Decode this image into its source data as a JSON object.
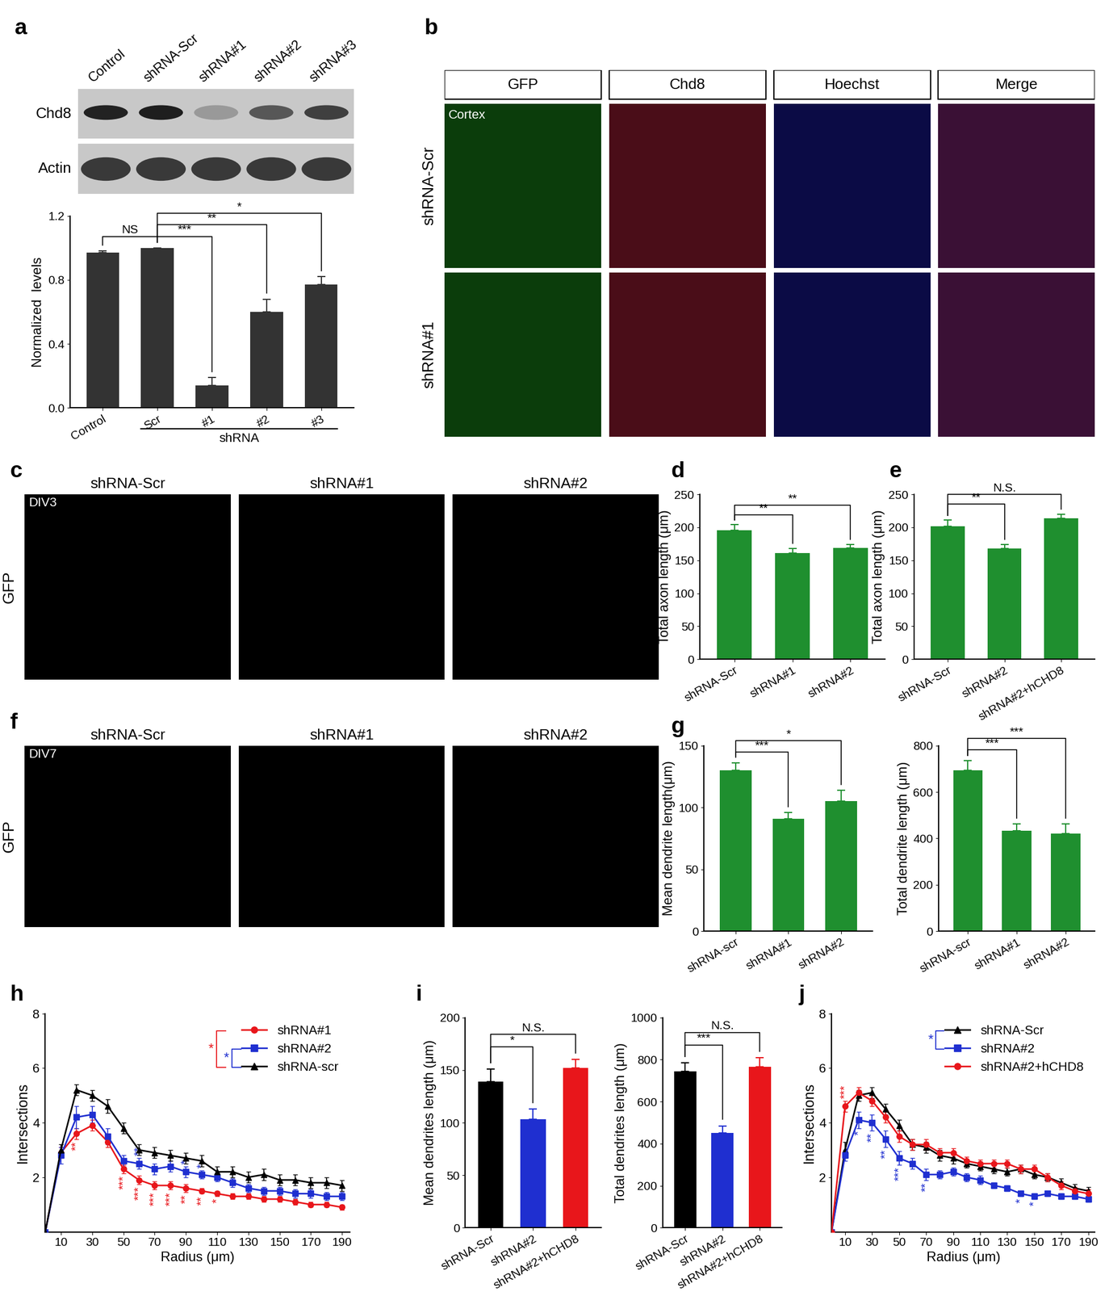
{
  "chart_data": [
    {
      "panel": "a",
      "type": "blot",
      "lanes": [
        "Control",
        "shRNA-Scr",
        "shRNA#1",
        "shRNA#2",
        "shRNA#3"
      ],
      "rows": [
        "Chd8",
        "Actin"
      ]
    },
    {
      "type": "bar",
      "ylabel": "Normalized  levels",
      "categories": [
        "Control",
        "Scr",
        "#1",
        "#2",
        "#3"
      ],
      "values": [
        0.97,
        1.0,
        0.14,
        0.6,
        0.77
      ],
      "errors": [
        0.01,
        0.0,
        0.05,
        0.08,
        0.05
      ],
      "color": "#333333",
      "ylim": [
        0,
        1.2
      ],
      "yticks": [
        {
          "value": 0,
          "label": "0.0"
        },
        0.4,
        0.8,
        1.2
      ],
      "group": {
        "label": "shRNA",
        "categories": [
          "Scr",
          "#1",
          "#2",
          "#3"
        ]
      },
      "significance": [
        {
          "pair": [
            "Scr",
            "#1"
          ],
          "label": "***"
        },
        {
          "pair": [
            "Scr",
            "#2"
          ],
          "label": "**"
        },
        {
          "pair": [
            "Scr",
            "#3"
          ],
          "label": "*"
        },
        {
          "pair": [
            "Control",
            "Scr"
          ],
          "label": "NS"
        }
      ]
    },
    {
      "panel": "b",
      "type": "image",
      "columns": [
        "GFP",
        "Chd8",
        "Hoechst",
        "Merge"
      ],
      "rows": [
        "shRNA-Scr",
        "shRNA#1"
      ],
      "annotation": "Cortex"
    },
    {
      "panel": "c",
      "type": "image",
      "columns": [
        "shRNA-Scr",
        "shRNA#1",
        "shRNA#2"
      ],
      "rows": [
        "GFP"
      ],
      "annotation": "DIV3"
    },
    {
      "panel": "d",
      "type": "bar",
      "ylabel": "Total axon length (μm)",
      "categories": [
        "shRNA-Scr",
        "shRNA#1",
        "shRNA#2"
      ],
      "values": [
        196,
        161,
        169
      ],
      "errors": [
        8,
        7,
        5
      ],
      "color": "#1f8f2f",
      "ylim": [
        0,
        250
      ],
      "yticks": [
        0,
        50,
        100,
        150,
        200,
        250
      ],
      "significance": [
        {
          "pair": [
            "shRNA-Scr",
            "shRNA#1"
          ],
          "label": "**"
        },
        {
          "pair": [
            "shRNA-Scr",
            "shRNA#2"
          ],
          "label": "**"
        }
      ]
    },
    {
      "panel": "e",
      "type": "bar",
      "ylabel": "Total axon length (μm)",
      "categories": [
        "shRNA-Scr",
        "shRNA#2",
        "shRNA#2+hCHD8"
      ],
      "values": [
        202,
        168,
        214
      ],
      "errors": [
        9,
        6,
        6
      ],
      "color": "#1f8f2f",
      "ylim": [
        0,
        250
      ],
      "yticks": [
        0,
        50,
        100,
        150,
        200,
        250
      ],
      "significance": [
        {
          "pair": [
            "shRNA-Scr",
            "shRNA#2"
          ],
          "label": "**"
        },
        {
          "pair": [
            "shRNA-Scr",
            "shRNA#2+hCHD8"
          ],
          "label": "N.S."
        }
      ]
    },
    {
      "panel": "f",
      "type": "image",
      "columns": [
        "shRNA-Scr",
        "shRNA#1",
        "shRNA#2"
      ],
      "rows": [
        "GFP"
      ],
      "annotation": "DIV7"
    },
    {
      "panel": "g",
      "type": "bar",
      "ylabel": "Mean dendrite length(μm)",
      "categories": [
        "shRNA-scr",
        "shRNA#1",
        "shRNA#2"
      ],
      "values": [
        130,
        91,
        105
      ],
      "errors": [
        6,
        5,
        9
      ],
      "color": "#1f8f2f",
      "ylim": [
        0,
        150
      ],
      "yticks": [
        0,
        50,
        100,
        150
      ],
      "significance": [
        {
          "pair": [
            "shRNA-scr",
            "shRNA#1"
          ],
          "label": "***"
        },
        {
          "pair": [
            "shRNA-scr",
            "shRNA#2"
          ],
          "label": "*"
        }
      ]
    },
    {
      "type": "bar",
      "ylabel": "Total dendrite length (μm)",
      "categories": [
        "shRNA-scr",
        "shRNA#1",
        "shRNA#2"
      ],
      "values": [
        695,
        433,
        422
      ],
      "errors": [
        40,
        30,
        40
      ],
      "color": "#1f8f2f",
      "ylim": [
        0,
        800
      ],
      "yticks": [
        0,
        200,
        400,
        600,
        800
      ],
      "significance": [
        {
          "pair": [
            "shRNA-scr",
            "shRNA#1"
          ],
          "label": "***"
        },
        {
          "pair": [
            "shRNA-scr",
            "shRNA#2"
          ],
          "label": "***"
        }
      ]
    },
    {
      "panel": "h",
      "type": "line",
      "xlabel": "Radius (μm)",
      "ylabel": "Intersections",
      "x": [
        0,
        10,
        20,
        30,
        40,
        50,
        60,
        70,
        80,
        90,
        100,
        110,
        120,
        130,
        140,
        150,
        160,
        170,
        180,
        190
      ],
      "xlim": [
        0,
        195
      ],
      "xticks": [
        10,
        30,
        50,
        70,
        90,
        110,
        130,
        150,
        170,
        190
      ],
      "ylim": [
        0,
        8
      ],
      "yticks": [
        2,
        4,
        6,
        8
      ],
      "legend": "upper right",
      "series": [
        {
          "name": "shRNA#1",
          "color": "#e8161b",
          "marker": "circle",
          "values": [
            0,
            2.9,
            3.6,
            3.9,
            3.3,
            2.3,
            1.9,
            1.7,
            1.7,
            1.6,
            1.5,
            1.4,
            1.3,
            1.3,
            1.2,
            1.2,
            1.1,
            1.0,
            1.0,
            0.9
          ],
          "errors": [
            0,
            0.2,
            0.2,
            0.2,
            0.2,
            0.15,
            0.15,
            0.15,
            0.15,
            0.15,
            0.1,
            0.1,
            0.1,
            0.1,
            0.1,
            0.1,
            0.1,
            0.1,
            0.1,
            0.1
          ]
        },
        {
          "name": "shRNA#2",
          "color": "#1f2fd0",
          "marker": "square",
          "values": [
            0,
            2.8,
            4.2,
            4.3,
            3.5,
            2.6,
            2.5,
            2.3,
            2.4,
            2.2,
            2.1,
            2.0,
            1.8,
            1.6,
            1.5,
            1.5,
            1.4,
            1.4,
            1.3,
            1.3
          ],
          "errors": [
            0,
            0.3,
            0.4,
            0.3,
            0.3,
            0.2,
            0.2,
            0.2,
            0.2,
            0.2,
            0.15,
            0.15,
            0.15,
            0.15,
            0.15,
            0.15,
            0.15,
            0.15,
            0.15,
            0.15
          ]
        },
        {
          "name": "shRNA-scr",
          "color": "#000000",
          "marker": "triangle",
          "values": [
            0,
            3.0,
            5.2,
            5.0,
            4.6,
            3.8,
            3.0,
            2.9,
            2.8,
            2.7,
            2.6,
            2.2,
            2.2,
            2.0,
            2.1,
            1.9,
            1.9,
            1.8,
            1.8,
            1.7
          ],
          "errors": [
            0,
            0.2,
            0.2,
            0.2,
            0.25,
            0.2,
            0.2,
            0.2,
            0.2,
            0.2,
            0.2,
            0.2,
            0.2,
            0.2,
            0.2,
            0.2,
            0.2,
            0.2,
            0.2,
            0.2
          ]
        }
      ],
      "annotations": [
        {
          "series": "shRNA#1",
          "x": 20,
          "text": "**"
        },
        {
          "series": "shRNA#1",
          "x": 50,
          "text": "***"
        },
        {
          "series": "shRNA#1",
          "x": 60,
          "text": "***"
        },
        {
          "series": "shRNA#1",
          "x": 70,
          "text": "***"
        },
        {
          "series": "shRNA#1",
          "x": 80,
          "text": "***"
        },
        {
          "series": "shRNA#1",
          "x": 90,
          "text": "**"
        },
        {
          "series": "shRNA#1",
          "x": 100,
          "text": "**"
        },
        {
          "series": "shRNA#1",
          "x": 110,
          "text": "*"
        },
        {
          "series": "shRNA#2",
          "x": 60,
          "text": "**"
        },
        {
          "series": "shRNA#2",
          "x": 90,
          "text": "*"
        },
        {
          "series": "shRNA#2",
          "x": 100,
          "text": "*"
        }
      ],
      "legend_significance": [
        {
          "between": [
            "shRNA#1",
            "shRNA-scr"
          ],
          "label": "*",
          "color": "#e8161b"
        },
        {
          "between": [
            "shRNA#2",
            "shRNA-scr"
          ],
          "label": "*",
          "color": "#1f2fd0"
        }
      ]
    },
    {
      "panel": "i",
      "type": "bar",
      "ylabel": "Mean dendrites length (μm)",
      "categories": [
        "shRNA-Scr",
        "shRNA#2",
        "shRNA#2+hCHD8"
      ],
      "values": [
        139,
        103,
        152
      ],
      "errors": [
        12,
        10,
        8
      ],
      "colors": [
        "#000000",
        "#1f2fd0",
        "#e8161b"
      ],
      "ylim": [
        0,
        200
      ],
      "yticks": [
        0,
        50,
        100,
        150,
        200
      ],
      "significance": [
        {
          "pair": [
            "shRNA-Scr",
            "shRNA#2"
          ],
          "label": "*"
        },
        {
          "pair": [
            "shRNA-Scr",
            "shRNA#2+hCHD8"
          ],
          "label": "N.S."
        }
      ]
    },
    {
      "type": "bar",
      "ylabel": "Total dendrites length (μm)",
      "categories": [
        "shRNA-Scr",
        "shRNA#2",
        "shRNA#2+hCHD8"
      ],
      "values": [
        745,
        450,
        765
      ],
      "errors": [
        40,
        35,
        45
      ],
      "colors": [
        "#000000",
        "#1f2fd0",
        "#e8161b"
      ],
      "ylim": [
        0,
        1000
      ],
      "yticks": [
        0,
        200,
        400,
        600,
        800,
        1000
      ],
      "significance": [
        {
          "pair": [
            "shRNA-Scr",
            "shRNA#2"
          ],
          "label": "***"
        },
        {
          "pair": [
            "shRNA-Scr",
            "shRNA#2+hCHD8"
          ],
          "label": "N.S."
        }
      ]
    },
    {
      "panel": "j",
      "type": "line",
      "xlabel": "Radius (μm)",
      "ylabel": "Intersections",
      "x": [
        0,
        10,
        20,
        30,
        40,
        50,
        60,
        70,
        80,
        90,
        100,
        110,
        120,
        130,
        140,
        150,
        160,
        170,
        180,
        190
      ],
      "xlim": [
        0,
        195
      ],
      "xticks": [
        10,
        30,
        50,
        70,
        90,
        110,
        130,
        150,
        170,
        190
      ],
      "ylim": [
        0,
        8
      ],
      "yticks": [
        2,
        4,
        6,
        8
      ],
      "legend": "upper right",
      "series": [
        {
          "name": "shRNA-Scr",
          "color": "#000000",
          "marker": "triangle",
          "values": [
            0,
            3.0,
            5.0,
            5.1,
            4.5,
            3.9,
            3.2,
            3.1,
            2.8,
            2.7,
            2.5,
            2.4,
            2.3,
            2.2,
            2.3,
            2.1,
            2.0,
            1.8,
            1.6,
            1.5
          ],
          "errors": [
            0,
            0.3,
            0.2,
            0.2,
            0.2,
            0.2,
            0.2,
            0.2,
            0.2,
            0.2,
            0.15,
            0.15,
            0.15,
            0.15,
            0.15,
            0.15,
            0.15,
            0.15,
            0.15,
            0.15
          ]
        },
        {
          "name": "shRNA#2",
          "color": "#1f2fd0",
          "marker": "square",
          "values": [
            0,
            2.8,
            4.1,
            4.0,
            3.4,
            2.7,
            2.5,
            2.1,
            2.1,
            2.2,
            2.0,
            1.9,
            1.7,
            1.6,
            1.4,
            1.3,
            1.4,
            1.3,
            1.3,
            1.2
          ],
          "errors": [
            0,
            0.2,
            0.3,
            0.3,
            0.3,
            0.25,
            0.2,
            0.2,
            0.15,
            0.15,
            0.15,
            0.15,
            0.1,
            0.1,
            0.1,
            0.1,
            0.1,
            0.1,
            0.1,
            0.1
          ]
        },
        {
          "name": "shRNA#2+hCHD8",
          "color": "#e8161b",
          "marker": "circle",
          "values": [
            0,
            4.6,
            5.1,
            4.8,
            4.2,
            3.5,
            3.2,
            3.2,
            2.9,
            2.9,
            2.6,
            2.5,
            2.5,
            2.5,
            2.3,
            2.3,
            2.0,
            1.7,
            1.5,
            1.4
          ],
          "errors": [
            0,
            0.2,
            0.2,
            0.2,
            0.2,
            0.2,
            0.2,
            0.2,
            0.15,
            0.15,
            0.15,
            0.15,
            0.15,
            0.15,
            0.15,
            0.15,
            0.15,
            0.15,
            0.15,
            0.15
          ]
        }
      ],
      "annotations": [
        {
          "series": "shRNA#2+hCHD8",
          "x": 10,
          "text": "***"
        },
        {
          "series": "shRNA#2",
          "x": 20,
          "text": "*"
        },
        {
          "series": "shRNA#2",
          "x": 30,
          "text": "**"
        },
        {
          "series": "shRNA#2",
          "x": 40,
          "text": "**"
        },
        {
          "series": "shRNA#2",
          "x": 50,
          "text": "***"
        },
        {
          "series": "shRNA#2",
          "x": 70,
          "text": "**"
        },
        {
          "series": "shRNA#2",
          "x": 140,
          "text": "*"
        },
        {
          "series": "shRNA#2",
          "x": 150,
          "text": "*"
        }
      ],
      "legend_significance": [
        {
          "between": [
            "shRNA-Scr",
            "shRNA#2"
          ],
          "label": "*",
          "color": "#1f2fd0"
        }
      ]
    }
  ]
}
